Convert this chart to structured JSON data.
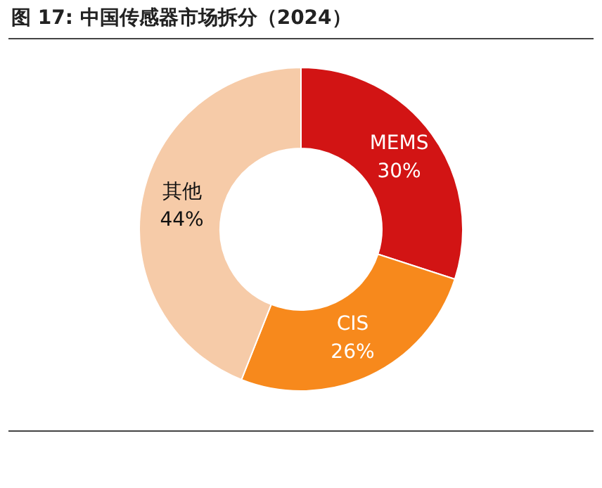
{
  "chart_data": {
    "type": "donut",
    "title": "图 17: 中国传感器市场拆分（2024）",
    "categories": [
      "MEMS",
      "CIS",
      "其他"
    ],
    "values": [
      30,
      26,
      44
    ],
    "colors": [
      "#d21414",
      "#f7891c",
      "#f6cba8"
    ],
    "value_labels": [
      "30%",
      "26%",
      "44%"
    ],
    "legend": false
  }
}
